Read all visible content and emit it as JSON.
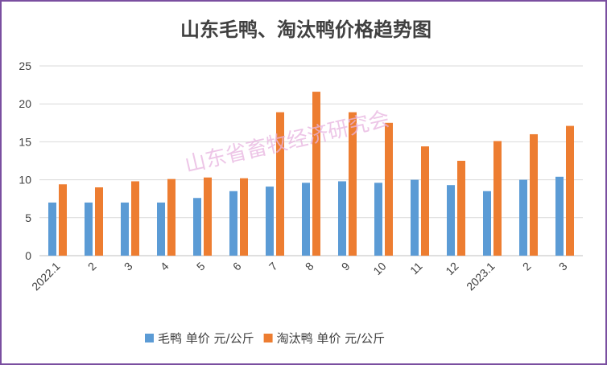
{
  "chart_data": {
    "type": "bar",
    "title": "山东毛鸭、淘汰鸭价格趋势图",
    "watermark": "山东省畜牧经济研究会",
    "categories": [
      "2022.1",
      "2",
      "3",
      "4",
      "5",
      "6",
      "7",
      "8",
      "9",
      "10",
      "11",
      "12",
      "2023.1",
      "2",
      "3"
    ],
    "series": [
      {
        "name": "毛鸭 单价 元/公斤",
        "color": "#5b9bd5",
        "values": [
          7.0,
          7.0,
          7.0,
          7.0,
          7.6,
          8.5,
          9.1,
          9.6,
          9.8,
          9.6,
          10.0,
          9.3,
          8.5,
          10.0,
          10.4
        ]
      },
      {
        "name": "淘汰鸭 单价 元/公斤",
        "color": "#ed7d31",
        "values": [
          9.4,
          9.0,
          9.8,
          10.1,
          10.3,
          10.2,
          18.9,
          21.6,
          18.9,
          17.5,
          14.4,
          12.5,
          15.1,
          16.0,
          17.1
        ]
      }
    ],
    "yticks": [
      0,
      5,
      10,
      15,
      20,
      25
    ],
    "ylim": [
      0,
      25
    ],
    "xlabel": "",
    "ylabel": "",
    "grid": true,
    "legend_position": "bottom"
  }
}
